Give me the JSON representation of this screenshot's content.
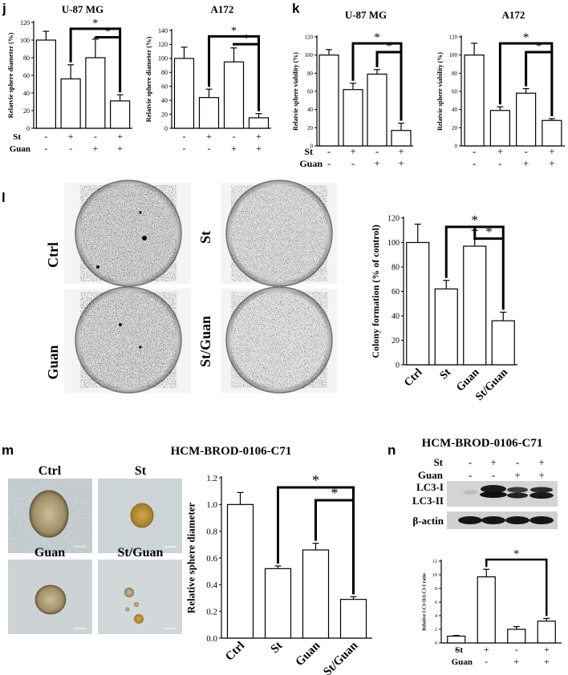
{
  "panel_letters": {
    "j": "j",
    "k": "k",
    "l": "l",
    "m": "m",
    "n": "n"
  },
  "treatment_labels": {
    "st": "St",
    "guan": "Guan",
    "plus": "+",
    "minus": "-"
  },
  "sig_label": "*",
  "photo_labels": {
    "l": [
      "Ctrl",
      "St",
      "Guan",
      "St/Guan"
    ],
    "m": [
      "Ctrl",
      "St",
      "Guan",
      "St/Guan"
    ]
  },
  "m_title": "HCM-BROD-0106-C71",
  "n_title": "HCM-BROD-0106-C71",
  "blot": {
    "bands": [
      "LC3-I",
      "LC3-II",
      "β-actin"
    ]
  },
  "colors": {
    "bar_fill": "#ffffff",
    "stroke": "#000000"
  },
  "chart_data": [
    {
      "id": "j1",
      "type": "bar",
      "title": "U-87 MG",
      "ylabel": "Relatvie sphere diameter (%)",
      "yticks": [
        0,
        20,
        40,
        60,
        80,
        100,
        120
      ],
      "ylim": [
        0,
        120
      ],
      "values": [
        100,
        56,
        80,
        31
      ],
      "errors": [
        10,
        16,
        21,
        7
      ],
      "treatments": {
        "St": [
          "-",
          "+",
          "-",
          "+"
        ],
        "Guan": [
          "-",
          "-",
          "+",
          "+"
        ]
      }
    },
    {
      "id": "j2",
      "type": "bar",
      "title": "A172",
      "ylabel": "Relatvie sphere diameter (%)",
      "yticks": [
        0,
        20,
        40,
        60,
        80,
        100,
        120,
        140
      ],
      "ylim": [
        0,
        140
      ],
      "values": [
        100,
        44,
        95,
        15
      ],
      "errors": [
        16,
        12,
        20,
        6
      ],
      "treatments": {
        "St": [
          "-",
          "+",
          "-",
          "+"
        ],
        "Guan": [
          "-",
          "-",
          "+",
          "+"
        ]
      }
    },
    {
      "id": "k1",
      "type": "bar",
      "title": "U-87 MG",
      "ylabel": "Relatvie sphere viability (%)",
      "yticks": [
        0,
        20,
        40,
        60,
        80,
        100,
        120
      ],
      "ylim": [
        0,
        120
      ],
      "values": [
        100,
        62,
        79,
        17
      ],
      "errors": [
        6,
        7,
        5,
        8
      ],
      "treatments": {
        "St": [
          "-",
          "+",
          "-",
          "+"
        ],
        "Guan": [
          "-",
          "-",
          "+",
          "+"
        ]
      }
    },
    {
      "id": "k2",
      "type": "bar",
      "title": "A172",
      "ylabel": "Relatvie sphere viability (%)",
      "yticks": [
        0,
        20,
        40,
        60,
        80,
        100,
        120
      ],
      "ylim": [
        0,
        120
      ],
      "values": [
        100,
        39,
        58,
        28
      ],
      "errors": [
        13,
        4,
        5,
        2
      ],
      "treatments": {
        "St": [
          "-",
          "+",
          "-",
          "+"
        ],
        "Guan": [
          "-",
          "-",
          "+",
          "+"
        ]
      }
    },
    {
      "id": "l",
      "type": "bar",
      "title": "",
      "ylabel": "Colony formation (% of control)",
      "yticks": [
        0,
        20,
        40,
        60,
        80,
        100,
        120
      ],
      "ylim": [
        0,
        120
      ],
      "categories": [
        "Ctrl",
        "St",
        "Guan",
        "St/Guan"
      ],
      "values": [
        100,
        62,
        97,
        36
      ],
      "errors": [
        15,
        7,
        13,
        7
      ]
    },
    {
      "id": "m",
      "type": "bar",
      "title": "",
      "ylabel": "Relative sphere diameter",
      "yticks": [
        "0.0",
        "0.2",
        "0.4",
        "0.6",
        "0.8",
        "1.0",
        "1.2"
      ],
      "ylim": [
        0,
        1.2
      ],
      "categories": [
        "Ctrl",
        "St",
        "Guan",
        "St/Guan"
      ],
      "values": [
        1.0,
        0.52,
        0.66,
        0.29
      ],
      "errors": [
        0.09,
        0.02,
        0.05,
        0.02
      ]
    },
    {
      "id": "n",
      "type": "bar",
      "title": "",
      "ylabel": "Relative LC3-II/LC3-I ratio",
      "yticks": [
        0,
        2,
        4,
        6,
        8,
        10,
        12
      ],
      "ylim": [
        0,
        12
      ],
      "values": [
        1.0,
        9.7,
        2.0,
        3.2
      ],
      "errors": [
        0.1,
        1.1,
        0.4,
        0.4
      ],
      "treatments": {
        "St": [
          "-",
          "+",
          "-",
          "+"
        ],
        "Guan": [
          "-",
          "-",
          "+",
          "+"
        ]
      }
    }
  ]
}
